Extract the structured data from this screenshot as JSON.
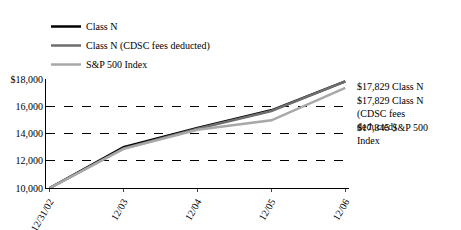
{
  "chart_data": {
    "type": "line",
    "categories": [
      "12/31/02",
      "12/03",
      "12/04",
      "12/05",
      "12/06"
    ],
    "series": [
      {
        "name": "Class N",
        "color": "#000000",
        "values": [
          10000,
          13000,
          14400,
          15700,
          17829
        ]
      },
      {
        "name": "Class N (CDSC fees deducted)",
        "color": "#6e6e6e",
        "values": [
          10000,
          12900,
          14350,
          15650,
          17829
        ]
      },
      {
        "name": "S&P 500 Index",
        "color": "#a8a8a8",
        "values": [
          10000,
          12870,
          14270,
          14970,
          17345
        ]
      }
    ],
    "ylim": [
      10000,
      18000
    ],
    "yticks": [
      {
        "value": 10000,
        "label": "10,000"
      },
      {
        "value": 12000,
        "label": "12,000"
      },
      {
        "value": 14000,
        "label": "14,000"
      },
      {
        "value": 16000,
        "label": "16,000"
      },
      {
        "value": 18000,
        "label": "$18,000"
      }
    ],
    "annotations": [
      "$17,829 Class N",
      "$17,829 Class N (CDSC fees deducted)",
      "$17,345 S&P 500 Index"
    ],
    "grid": true,
    "legend": "top"
  }
}
